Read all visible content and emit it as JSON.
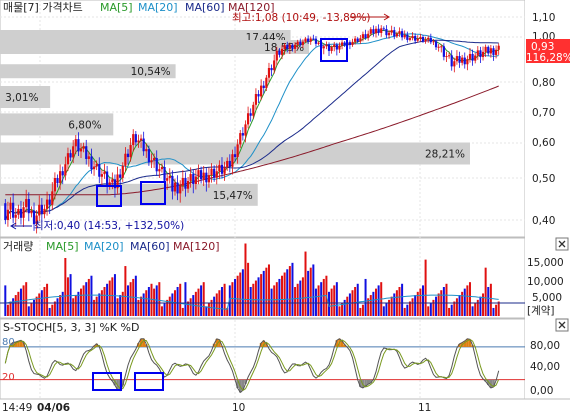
{
  "colors": {
    "up": "#e01010",
    "down": "#1010e0",
    "ma5": "#2a9a2a",
    "ma20": "#1e90c8",
    "ma60": "#1a2a8a",
    "ma120": "#8a1a2a",
    "highlight": "#0000ee",
    "bar_gray": "#cfcfcf",
    "stoch_k": "#555555",
    "stoch_d": "#7a9a20",
    "fill": "#e08010",
    "line80": "#4a7ab0",
    "line20": "#e03030"
  },
  "price_panel": {
    "title_prefix": "매물[7] 가격차트",
    "ma_labels": [
      "MA[5]",
      "MA[20]",
      "MA[60]",
      "MA[120]"
    ],
    "y_ticks": [
      "1,10",
      "1,00",
      "0,93",
      "116,28%",
      "0,80",
      "0,70",
      "0,60",
      "0,50",
      "0,40"
    ],
    "high_label": "최고:1,08 (10:49, -13,89%)",
    "low_label": "최저:0,40 (14:53, +132,50%)",
    "volume_profile": [
      {
        "label": "17,44%",
        "value": 17.44
      },
      {
        "label": "18,55%",
        "value": 18.55
      },
      {
        "label": "10,54%",
        "value": 10.54
      },
      {
        "label": "3,01%",
        "value": 3.01
      },
      {
        "label": "6,80%",
        "value": 6.8
      },
      {
        "label": "28,21%",
        "value": 28.21
      },
      {
        "label": "15,47%",
        "value": 15.47
      }
    ]
  },
  "volume_panel": {
    "title_prefix": "거래량",
    "ma_labels": [
      "MA[5]",
      "MA[20]",
      "MA[60]",
      "MA[120]"
    ],
    "y_ticks": [
      "15,000",
      "10,000",
      "5,000",
      "[계약]"
    ]
  },
  "stoch_panel": {
    "title": "S-STOCH[5, 3, 3] %K %D",
    "level_labels": [
      "80",
      "20"
    ],
    "y_ticks": [
      "80,00",
      "40,00",
      "0,00"
    ]
  },
  "x_axis": {
    "labels": [
      "14:49",
      "04/06",
      "10",
      "11"
    ]
  },
  "icons": [
    "close-icon"
  ],
  "chart_data": {
    "type": "candlestick",
    "series": [
      {
        "name": "MA[5]"
      },
      {
        "name": "MA[20]"
      },
      {
        "name": "MA[60]"
      },
      {
        "name": "MA[120]"
      }
    ],
    "price_range": [
      0.37,
      1.12
    ],
    "high": 1.08,
    "low": 0.4,
    "last": 0.93,
    "percent_of_low": "116,28%",
    "volume_range": [
      0,
      18000
    ],
    "stoch_range": [
      -10,
      100
    ],
    "stoch_levels": [
      80,
      20
    ]
  }
}
